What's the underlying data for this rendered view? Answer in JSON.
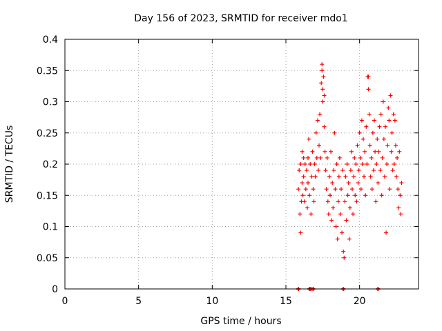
{
  "chart_data": {
    "type": "scatter",
    "title": "Day 156 of 2023, SRMTID for receiver mdo1",
    "xlabel": "GPS time / hours",
    "ylabel": "SRMTID / TECUs",
    "xlim": [
      0,
      24
    ],
    "ylim": [
      0,
      0.4
    ],
    "x_ticks": [
      0,
      5,
      10,
      15,
      20
    ],
    "y_ticks": [
      0,
      0.05,
      0.1,
      0.15,
      0.2,
      0.25,
      0.3,
      0.35,
      0.4
    ],
    "x_tick_labels": [
      "0",
      "5",
      "10",
      "15",
      "20"
    ],
    "y_tick_labels": [
      "0",
      "0.05",
      "0.1",
      "0.15",
      "0.2",
      "0.25",
      "0.3",
      "0.35",
      "0.4"
    ],
    "grid": true,
    "marker": "plus",
    "marker_color": "#ff0000",
    "grid_color": "#a0a0a0",
    "series": [
      {
        "name": "SRMTID",
        "points": [
          [
            15.85,
            0.16
          ],
          [
            15.9,
            0.19
          ],
          [
            15.95,
            0.12
          ],
          [
            16.0,
            0.09
          ],
          [
            16.0,
            0.2
          ],
          [
            16.05,
            0.14
          ],
          [
            16.1,
            0.22
          ],
          [
            16.1,
            0.17
          ],
          [
            16.15,
            0.15
          ],
          [
            16.2,
            0.18
          ],
          [
            16.2,
            0.21
          ],
          [
            16.25,
            0.14
          ],
          [
            16.3,
            0.2
          ],
          [
            16.35,
            0.16
          ],
          [
            16.4,
            0.19
          ],
          [
            16.45,
            0.13
          ],
          [
            16.5,
            0.21
          ],
          [
            16.5,
            0.17
          ],
          [
            16.55,
            0.24
          ],
          [
            16.6,
            0.15
          ],
          [
            16.65,
            0.2
          ],
          [
            16.7,
            0.12
          ],
          [
            16.75,
            0.18
          ],
          [
            16.8,
            0.22
          ],
          [
            16.85,
            0.16
          ],
          [
            16.9,
            0.14
          ],
          [
            16.95,
            0.2
          ],
          [
            17.0,
            0.18
          ],
          [
            17.05,
            0.25
          ],
          [
            17.1,
            0.21
          ],
          [
            17.15,
            0.27
          ],
          [
            17.2,
            0.19
          ],
          [
            17.25,
            0.23
          ],
          [
            17.3,
            0.28
          ],
          [
            17.35,
            0.21
          ],
          [
            17.4,
            0.33
          ],
          [
            17.45,
            0.36
          ],
          [
            17.45,
            0.35
          ],
          [
            17.5,
            0.32
          ],
          [
            17.5,
            0.3
          ],
          [
            17.55,
            0.34
          ],
          [
            17.6,
            0.31
          ],
          [
            17.6,
            0.26
          ],
          [
            17.65,
            0.22
          ],
          [
            17.7,
            0.19
          ],
          [
            17.75,
            0.16
          ],
          [
            17.8,
            0.21
          ],
          [
            17.85,
            0.14
          ],
          [
            17.9,
            0.12
          ],
          [
            17.95,
            0.18
          ],
          [
            18.0,
            0.15
          ],
          [
            18.05,
            0.22
          ],
          [
            18.1,
            0.11
          ],
          [
            18.15,
            0.17
          ],
          [
            18.2,
            0.13
          ],
          [
            18.25,
            0.19
          ],
          [
            18.3,
            0.25
          ],
          [
            18.35,
            0.16
          ],
          [
            18.4,
            0.1
          ],
          [
            18.45,
            0.2
          ],
          [
            18.5,
            0.08
          ],
          [
            18.55,
            0.14
          ],
          [
            18.6,
            0.18
          ],
          [
            18.65,
            0.21
          ],
          [
            18.7,
            0.12
          ],
          [
            18.75,
            0.16
          ],
          [
            18.8,
            0.09
          ],
          [
            18.85,
            0.19
          ],
          [
            18.9,
            0.06
          ],
          [
            18.95,
            0.05
          ],
          [
            19.0,
            0.14
          ],
          [
            19.05,
            0.18
          ],
          [
            19.1,
            0.11
          ],
          [
            19.15,
            0.2
          ],
          [
            19.2,
            0.15
          ],
          [
            19.25,
            0.17
          ],
          [
            19.3,
            0.08
          ],
          [
            19.35,
            0.13
          ],
          [
            19.4,
            0.19
          ],
          [
            19.45,
            0.22
          ],
          [
            19.5,
            0.16
          ],
          [
            19.55,
            0.12
          ],
          [
            19.6,
            0.18
          ],
          [
            19.65,
            0.21
          ],
          [
            19.7,
            0.15
          ],
          [
            19.75,
            0.2
          ],
          [
            19.8,
            0.14
          ],
          [
            19.85,
            0.23
          ],
          [
            19.9,
            0.17
          ],
          [
            19.95,
            0.19
          ],
          [
            20.0,
            0.25
          ],
          [
            20.05,
            0.21
          ],
          [
            20.1,
            0.16
          ],
          [
            20.15,
            0.27
          ],
          [
            20.2,
            0.2
          ],
          [
            20.25,
            0.24
          ],
          [
            20.3,
            0.18
          ],
          [
            20.35,
            0.22
          ],
          [
            20.4,
            0.15
          ],
          [
            20.45,
            0.26
          ],
          [
            20.5,
            0.2
          ],
          [
            20.55,
            0.34
          ],
          [
            20.6,
            0.32
          ],
          [
            20.6,
            0.34
          ],
          [
            20.65,
            0.28
          ],
          [
            20.7,
            0.23
          ],
          [
            20.75,
            0.18
          ],
          [
            20.8,
            0.21
          ],
          [
            20.85,
            0.16
          ],
          [
            20.9,
            0.25
          ],
          [
            20.95,
            0.19
          ],
          [
            21.0,
            0.27
          ],
          [
            21.05,
            0.22
          ],
          [
            21.1,
            0.14
          ],
          [
            21.15,
            0.2
          ],
          [
            21.2,
            0.24
          ],
          [
            21.25,
            0.17
          ],
          [
            21.3,
            0.22
          ],
          [
            21.35,
            0.26
          ],
          [
            21.4,
            0.19
          ],
          [
            21.45,
            0.28
          ],
          [
            21.5,
            0.15
          ],
          [
            21.55,
            0.21
          ],
          [
            21.6,
            0.3
          ],
          [
            21.65,
            0.24
          ],
          [
            21.7,
            0.18
          ],
          [
            21.75,
            0.26
          ],
          [
            21.8,
            0.09
          ],
          [
            21.85,
            0.2
          ],
          [
            21.9,
            0.23
          ],
          [
            21.95,
            0.29
          ],
          [
            22.0,
            0.27
          ],
          [
            22.05,
            0.16
          ],
          [
            22.1,
            0.31
          ],
          [
            22.15,
            0.22
          ],
          [
            22.2,
            0.25
          ],
          [
            22.25,
            0.19
          ],
          [
            22.3,
            0.28
          ],
          [
            22.35,
            0.2
          ],
          [
            22.4,
            0.27
          ],
          [
            22.45,
            0.23
          ],
          [
            22.5,
            0.18
          ],
          [
            22.55,
            0.21
          ],
          [
            22.6,
            0.16
          ],
          [
            22.65,
            0.13
          ],
          [
            22.7,
            0.22
          ],
          [
            22.75,
            0.15
          ],
          [
            22.8,
            0.12
          ],
          [
            22.85,
            0.17
          ]
        ],
        "zero_points": [
          15.85,
          16.6,
          16.7,
          16.85,
          18.9,
          21.25
        ]
      }
    ]
  }
}
